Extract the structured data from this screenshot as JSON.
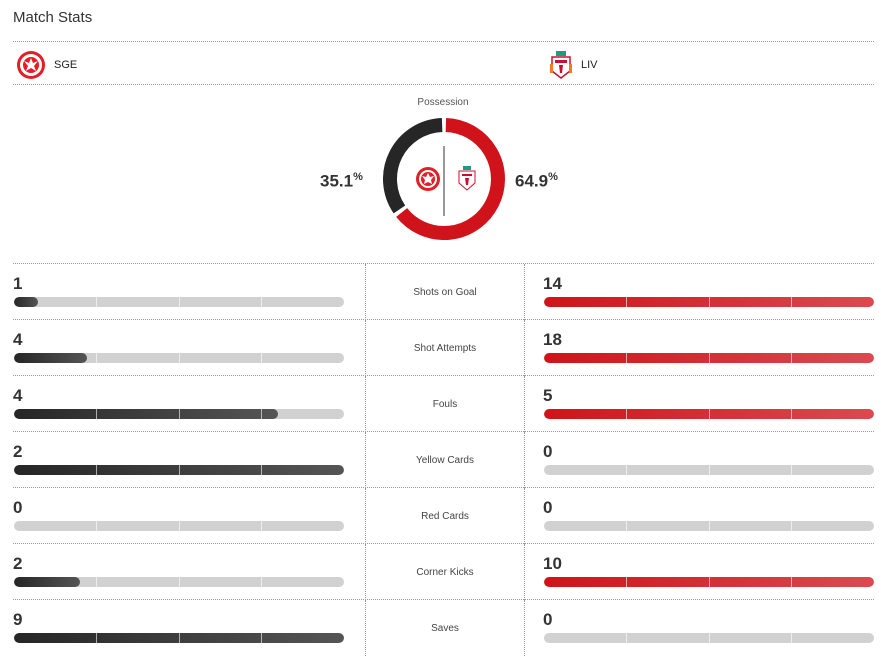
{
  "title": "Match Stats",
  "home": {
    "abbr": "SGE",
    "possession": "35.1",
    "color": "#262626"
  },
  "away": {
    "abbr": "LIV",
    "possession": "64.9",
    "color": "#d0131a"
  },
  "possession_label": "Possession",
  "percent_sign": "%",
  "stats": [
    {
      "label": "Shots on Goal",
      "home": 1,
      "away": 14
    },
    {
      "label": "Shot Attempts",
      "home": 4,
      "away": 18
    },
    {
      "label": "Fouls",
      "home": 4,
      "away": 5
    },
    {
      "label": "Yellow Cards",
      "home": 2,
      "away": 0
    },
    {
      "label": "Red Cards",
      "home": 0,
      "away": 0
    },
    {
      "label": "Corner Kicks",
      "home": 2,
      "away": 10
    },
    {
      "label": "Saves",
      "home": 9,
      "away": 0
    }
  ]
}
